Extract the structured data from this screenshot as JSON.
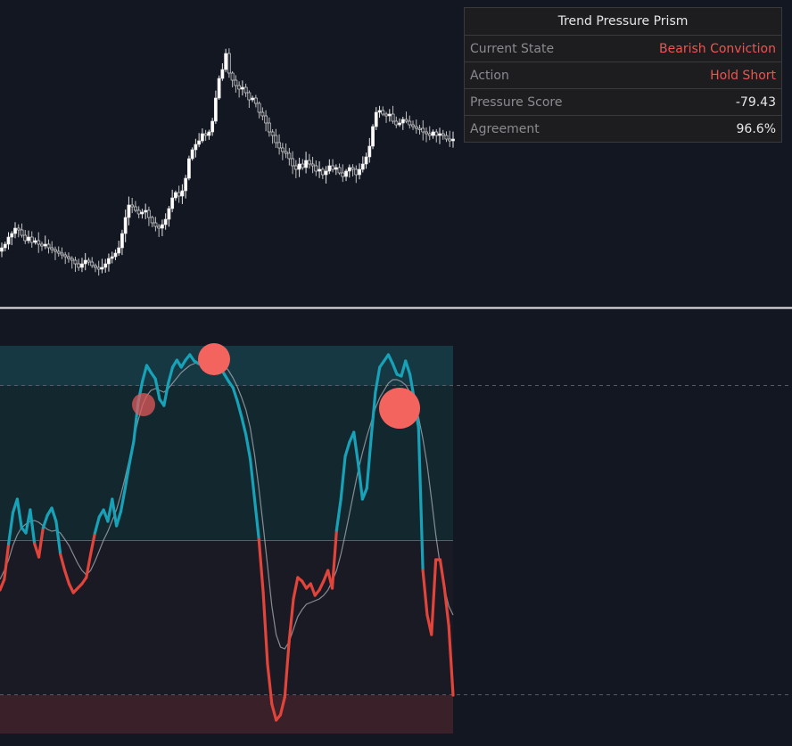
{
  "colors": {
    "background": "#131722",
    "bull": "#17a2b8",
    "bear": "#e0443a",
    "signal_line": "#9aa0a6",
    "signal_bubble": "#f4645f"
  },
  "info_table": {
    "title": "Trend Pressure Prism",
    "rows": [
      {
        "label": "Current State",
        "value": "Bearish Conviction",
        "tone": "bear"
      },
      {
        "label": "Action",
        "value": "Hold Short",
        "tone": "bear"
      },
      {
        "label": "Pressure Score",
        "value": "-79.43",
        "tone": "neutral"
      },
      {
        "label": "Agreement",
        "value": "96.6%",
        "tone": "neutral"
      }
    ]
  },
  "chart_data": [
    {
      "type": "candlestick",
      "title": "",
      "close": [
        278,
        274,
        266,
        262,
        256,
        258,
        264,
        270,
        266,
        272,
        270,
        274,
        276,
        274,
        278,
        280,
        282,
        284,
        286,
        288,
        290,
        292,
        296,
        300,
        296,
        292,
        294,
        298,
        300,
        302,
        300,
        296,
        290,
        288,
        284,
        278,
        262,
        244,
        230,
        232,
        236,
        240,
        238,
        236,
        244,
        250,
        254,
        256,
        252,
        246,
        234,
        222,
        216,
        220,
        214,
        200,
        178,
        168,
        162,
        158,
        150,
        152,
        148,
        136,
        110,
        88,
        78,
        60,
        82,
        90,
        96,
        100,
        98,
        104,
        112,
        110,
        116,
        126,
        130,
        138,
        148,
        152,
        160,
        166,
        170,
        172,
        178,
        186,
        190,
        184,
        188,
        180,
        184,
        186,
        192,
        190,
        196,
        192,
        186,
        190,
        188,
        194,
        198,
        192,
        188,
        190,
        196,
        190,
        184,
        176,
        164,
        142,
        126,
        124,
        128,
        130,
        128,
        136,
        140,
        138,
        134,
        136,
        140,
        142,
        144,
        144,
        148,
        150,
        152,
        148,
        152,
        150,
        152,
        156,
        158,
        156
      ]
    },
    {
      "type": "line",
      "title": "",
      "pressure": [
        662,
        650,
        610,
        575,
        560,
        592,
        598,
        572,
        610,
        625,
        592,
        578,
        570,
        585,
        622,
        640,
        655,
        665,
        660,
        655,
        648,
        622,
        598,
        580,
        572,
        585,
        560,
        590,
        574,
        548,
        520,
        495,
        452,
        428,
        410,
        418,
        425,
        448,
        455,
        430,
        412,
        404,
        412,
        404,
        398,
        405,
        408,
        404,
        402,
        408,
        405,
        412,
        420,
        428,
        435,
        450,
        468,
        488,
        515,
        560,
        605,
        665,
        745,
        790,
        808,
        802,
        782,
        720,
        672,
        648,
        652,
        660,
        655,
        668,
        662,
        652,
        640,
        660,
        595,
        560,
        512,
        496,
        485,
        520,
        560,
        548,
        492,
        440,
        412,
        405,
        398,
        408,
        420,
        422,
        405,
        420,
        448,
        480,
        640,
        690,
        712,
        628,
        628,
        660,
        702,
        780
      ],
      "signal": [
        650,
        640,
        628,
        612,
        600,
        592,
        588,
        585,
        584,
        586,
        590,
        594,
        596,
        595,
        598,
        605,
        612,
        622,
        632,
        640,
        645,
        640,
        630,
        618,
        606,
        596,
        584,
        572,
        555,
        536,
        515,
        492,
        472,
        455,
        444,
        438,
        436,
        438,
        440,
        436,
        430,
        424,
        418,
        414,
        410,
        408,
        406,
        404,
        404,
        404,
        404,
        406,
        410,
        416,
        424,
        434,
        446,
        460,
        480,
        510,
        548,
        590,
        635,
        680,
        712,
        726,
        728,
        720,
        706,
        692,
        684,
        678,
        676,
        674,
        672,
        668,
        662,
        652,
        640,
        622,
        600,
        576,
        552,
        528,
        508,
        490,
        474,
        458,
        446,
        438,
        430,
        426,
        426,
        428,
        432,
        440,
        452,
        468,
        492,
        522,
        560,
        600,
        634,
        660,
        680,
        690
      ]
    }
  ]
}
